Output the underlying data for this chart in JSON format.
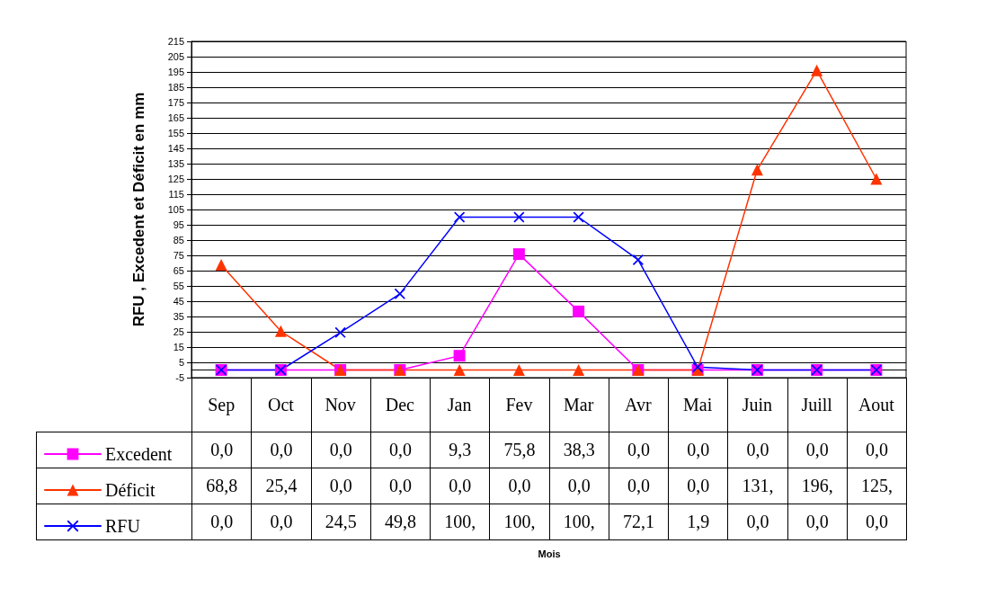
{
  "chart_data": {
    "type": "line",
    "annotations": [
      "Mois"
    ],
    "ylabel": "RFU , Excedent et Déficit en mm",
    "categories": [
      "Sep",
      "Oct",
      "Nov",
      "Dec",
      "Jan",
      "Fev",
      "Mar",
      "Avr",
      "Mai",
      "Juin",
      "Juill",
      "Aout"
    ],
    "series": [
      {
        "name": "Excedent",
        "color": "#ff00ff",
        "marker": "square",
        "values": [
          0,
          0,
          0,
          0,
          9.3,
          75.8,
          38.3,
          0,
          0,
          0,
          0,
          0
        ],
        "value_labels": [
          "0,0",
          "0,0",
          "0,0",
          "0,0",
          "9,3",
          "75,8",
          "38,3",
          "0,0",
          "0,0",
          "0,0",
          "0,0",
          "0,0"
        ]
      },
      {
        "name": "Déficit",
        "color": "#ff3300",
        "marker": "triangle",
        "values": [
          68.8,
          25.4,
          0,
          0,
          0,
          0,
          0,
          0,
          0,
          131,
          196,
          125
        ],
        "value_labels": [
          "68,8",
          "25,4",
          "0,0",
          "0,0",
          "0,0",
          "0,0",
          "0,0",
          "0,0",
          "0,0",
          "131,",
          "196,",
          "125,"
        ]
      },
      {
        "name": "RFU",
        "color": "#0000ff",
        "marker": "cross",
        "values": [
          0,
          0,
          24.5,
          49.8,
          100,
          100,
          100,
          72.1,
          1.9,
          0,
          0,
          0
        ],
        "value_labels": [
          "0,0",
          "0,0",
          "24,5",
          "49,8",
          "100,",
          "100,",
          "100,",
          "72,1",
          "1,9",
          "0,0",
          "0,0",
          "0,0"
        ]
      }
    ],
    "ylim": [
      -5,
      215
    ],
    "yticks": [
      -5,
      5,
      15,
      25,
      35,
      45,
      55,
      65,
      75,
      85,
      95,
      105,
      115,
      125,
      135,
      145,
      155,
      165,
      175,
      185,
      195,
      205,
      215
    ],
    "grid": "y",
    "legend": "bottom left",
    "line_style": "solid"
  }
}
